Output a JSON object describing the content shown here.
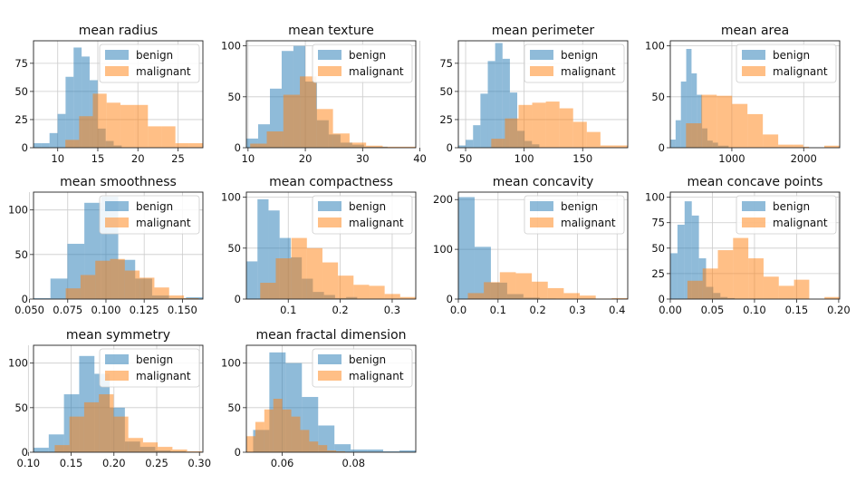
{
  "colors": {
    "benign": "#1f77b4",
    "malignant": "#ff7f0e"
  },
  "chart_data": [
    {
      "type": "histogram",
      "title": "mean radius",
      "xlim": [
        6.98,
        28.11
      ],
      "ylim": [
        0,
        95
      ],
      "grid": true,
      "legend": "top-right",
      "xticks": [
        "10",
        "15",
        "20",
        "25"
      ],
      "yticks": [
        "0",
        "25",
        "50",
        "75"
      ],
      "series": [
        {
          "name": "benign",
          "bins": [
            6.98,
            7.98,
            8.98,
            9.98,
            10.98,
            11.98,
            12.98,
            13.98,
            14.98,
            15.98,
            16.98,
            17.98
          ],
          "counts": [
            4,
            4,
            13,
            30,
            63,
            89,
            81,
            60,
            17,
            6,
            2
          ]
        },
        {
          "name": "malignant",
          "bins": [
            10.95,
            12.67,
            14.38,
            16.1,
            17.82,
            19.53,
            21.25,
            22.96,
            24.68,
            26.4,
            28.11
          ],
          "counts": [
            7,
            28,
            48,
            40,
            38,
            38,
            19,
            19,
            4,
            4
          ]
        }
      ]
    },
    {
      "type": "histogram",
      "title": "mean texture",
      "xlim": [
        9.71,
        39.28
      ],
      "ylim": [
        0,
        105
      ],
      "grid": true,
      "legend": "top-right",
      "xticks": [
        "10",
        "20",
        "30",
        "40"
      ],
      "yticks": [
        "0",
        "50",
        "100"
      ],
      "series": [
        {
          "name": "benign",
          "bins": [
            9.71,
            11.76,
            13.82,
            15.87,
            17.92,
            19.98,
            22.03,
            24.08,
            26.14,
            28.19,
            30.24,
            32.3,
            34.35
          ],
          "counts": [
            9,
            23,
            58,
            95,
            100,
            65,
            27,
            13,
            5,
            3,
            1,
            1
          ]
        },
        {
          "name": "malignant",
          "bins": [
            10.38,
            13.27,
            16.16,
            19.05,
            21.94,
            24.83,
            27.72,
            30.61,
            33.5,
            36.39,
            39.28
          ],
          "counts": [
            4,
            16,
            52,
            70,
            38,
            14,
            5,
            2,
            1,
            1
          ]
        }
      ]
    },
    {
      "type": "histogram",
      "title": "mean perimeter",
      "xlim": [
        43.79,
        188.5
      ],
      "ylim": [
        0,
        95
      ],
      "grid": true,
      "legend": "top-right",
      "xticks": [
        "50",
        "100",
        "150"
      ],
      "yticks": [
        "0",
        "25",
        "50",
        "75"
      ],
      "series": [
        {
          "name": "benign",
          "bins": [
            43.79,
            50.08,
            56.37,
            62.66,
            68.95,
            75.24,
            81.53,
            87.82,
            94.11,
            100.4,
            106.69,
            112.98
          ],
          "counts": [
            2,
            7,
            20,
            48,
            77,
            93,
            79,
            49,
            15,
            6,
            3
          ]
        },
        {
          "name": "malignant",
          "bins": [
            71.9,
            83.56,
            95.22,
            106.88,
            118.54,
            130.2,
            141.86,
            153.52,
            165.18,
            176.84,
            188.5
          ],
          "counts": [
            8,
            26,
            38,
            40,
            41,
            35,
            23,
            14,
            2,
            2
          ]
        }
      ]
    },
    {
      "type": "histogram",
      "title": "mean area",
      "xlim": [
        143.5,
        2501
      ],
      "ylim": [
        0,
        105
      ],
      "grid": true,
      "legend": "top-right",
      "xticks": [
        "1000",
        "2000"
      ],
      "yticks": [
        "0",
        "50",
        "100"
      ],
      "series": [
        {
          "name": "benign",
          "bins": [
            143.5,
            217.3,
            291.1,
            364.9,
            438.7,
            512.5,
            586.3,
            660.1,
            733.9,
            807.7,
            881.5,
            955.3
          ],
          "counts": [
            8,
            27,
            65,
            97,
            73,
            52,
            19,
            7,
            5,
            2,
            2
          ]
        },
        {
          "name": "malignant",
          "bins": [
            361.6,
            575.5,
            789.5,
            1003.4,
            1217.3,
            1431.3,
            1645.2,
            1859.1,
            1994,
            2073,
            2287,
            2501
          ],
          "counts": [
            24,
            52,
            51,
            43,
            33,
            13,
            3,
            3,
            1,
            0,
            2
          ]
        }
      ]
    },
    {
      "type": "histogram",
      "title": "mean smoothness",
      "xlim": [
        0.05263,
        0.1634
      ],
      "ylim": [
        0,
        120
      ],
      "grid": true,
      "legend": "top-right",
      "xticks": [
        "0.050",
        "0.075",
        "0.100",
        "0.125",
        "0.150"
      ],
      "yticks": [
        "0",
        "50",
        "100"
      ],
      "series": [
        {
          "name": "benign",
          "bins": [
            0.05263,
            0.06371,
            0.07479,
            0.08587,
            0.09695,
            0.10803,
            0.11911,
            0.13019,
            0.14127,
            0.15235,
            0.16343
          ],
          "counts": [
            1,
            23,
            62,
            108,
            115,
            44,
            23,
            4,
            1,
            2
          ]
        },
        {
          "name": "malignant",
          "bins": [
            0.07371,
            0.08337,
            0.09303,
            0.10269,
            0.11235,
            0.12201,
            0.13167,
            0.14133,
            0.15099,
            0.16065
          ],
          "counts": [
            12,
            27,
            43,
            45,
            32,
            24,
            13,
            4,
            1
          ]
        }
      ]
    },
    {
      "type": "histogram",
      "title": "mean compactness",
      "xlim": [
        0.01938,
        0.3454
      ],
      "ylim": [
        0,
        105
      ],
      "grid": true,
      "legend": "top-right",
      "xticks": [
        "0.1",
        "0.2",
        "0.3"
      ],
      "yticks": [
        "0",
        "50",
        "100"
      ],
      "series": [
        {
          "name": "benign",
          "bins": [
            0.01938,
            0.04071,
            0.06204,
            0.08337,
            0.1047,
            0.12603,
            0.14736,
            0.16869,
            0.19002,
            0.21135,
            0.23268
          ],
          "counts": [
            37,
            98,
            87,
            60,
            41,
            20,
            7,
            4,
            1,
            2
          ]
        },
        {
          "name": "malignant",
          "bins": [
            0.04605,
            0.07598,
            0.10591,
            0.13584,
            0.16577,
            0.1957,
            0.22563,
            0.25556,
            0.28549,
            0.31542,
            0.34535
          ],
          "counts": [
            16,
            40,
            60,
            50,
            36,
            23,
            14,
            13,
            5,
            2
          ]
        }
      ]
    },
    {
      "type": "histogram",
      "title": "mean concavity",
      "xlim": [
        0,
        0.4268
      ],
      "ylim": [
        0,
        215
      ],
      "grid": true,
      "legend": "top-right",
      "xticks": [
        "0.0",
        "0.1",
        "0.2",
        "0.3",
        "0.4"
      ],
      "yticks": [
        "0",
        "100",
        "200"
      ],
      "series": [
        {
          "name": "benign",
          "bins": [
            0,
            0.041,
            0.082,
            0.123,
            0.164,
            0.205,
            0.246,
            0.287,
            0.328,
            0.369,
            0.41
          ],
          "counts": [
            205,
            105,
            33,
            10,
            3,
            1,
            0,
            0,
            0,
            0
          ]
        },
        {
          "name": "malignant",
          "bins": [
            0.02398,
            0.06426,
            0.10454,
            0.14482,
            0.1851,
            0.22538,
            0.26566,
            0.30594,
            0.34622,
            0.3865,
            0.42678
          ],
          "counts": [
            12,
            34,
            54,
            52,
            35,
            22,
            12,
            7,
            1,
            2
          ]
        }
      ]
    },
    {
      "type": "histogram",
      "title": "mean concave points",
      "xlim": [
        0,
        0.2012
      ],
      "ylim": [
        0,
        105
      ],
      "grid": true,
      "legend": "top-right",
      "xticks": [
        "0.00",
        "0.05",
        "0.10",
        "0.15",
        "0.20"
      ],
      "yticks": [
        "0",
        "25",
        "50",
        "75",
        "100"
      ],
      "series": [
        {
          "name": "benign",
          "bins": [
            0,
            0.0085,
            0.017,
            0.0255,
            0.034,
            0.0425,
            0.051,
            0.0595,
            0.068,
            0.0765,
            0.085
          ],
          "counts": [
            45,
            73,
            96,
            82,
            40,
            12,
            6,
            2,
            1,
            0
          ]
        },
        {
          "name": "malignant",
          "bins": [
            0.02031,
            0.0384,
            0.05649,
            0.07458,
            0.09267,
            0.11076,
            0.12885,
            0.14694,
            0.16503,
            0.18312,
            0.20121
          ],
          "counts": [
            18,
            30,
            48,
            60,
            40,
            22,
            13,
            19,
            0,
            2
          ]
        }
      ]
    },
    {
      "type": "histogram",
      "title": "mean symmetry",
      "xlim": [
        0.106,
        0.304
      ],
      "ylim": [
        0,
        120
      ],
      "grid": true,
      "legend": "top-right",
      "xticks": [
        "0.10",
        "0.15",
        "0.20",
        "0.25",
        "0.30"
      ],
      "yticks": [
        "0",
        "50",
        "100"
      ],
      "series": [
        {
          "name": "benign",
          "bins": [
            0.106,
            0.1238,
            0.1416,
            0.1594,
            0.1772,
            0.195,
            0.2128,
            0.2306,
            0.2484,
            0.2662,
            0.284
          ],
          "counts": [
            5,
            20,
            65,
            108,
            88,
            50,
            12,
            6,
            2,
            1
          ]
        },
        {
          "name": "malignant",
          "bins": [
            0.1308,
            0.148,
            0.1652,
            0.1824,
            0.1996,
            0.2168,
            0.234,
            0.2512,
            0.2684,
            0.2856,
            0.3028
          ],
          "counts": [
            8,
            40,
            56,
            65,
            40,
            16,
            11,
            6,
            3,
            1
          ]
        }
      ]
    },
    {
      "type": "histogram",
      "title": "mean fractal dimension",
      "xlim": [
        0.04996,
        0.09744
      ],
      "ylim": [
        0,
        120
      ],
      "grid": true,
      "legend": "top-right",
      "xticks": [
        "0.06",
        "0.08"
      ],
      "yticks": [
        "0",
        "50",
        "100"
      ],
      "series": [
        {
          "name": "benign",
          "bins": [
            0.05185,
            0.0564,
            0.06096,
            0.06552,
            0.07008,
            0.07464,
            0.0792,
            0.08376,
            0.08832,
            0.09288,
            0.09744
          ],
          "counts": [
            25,
            112,
            100,
            62,
            30,
            9,
            3,
            3,
            1,
            2
          ]
        },
        {
          "name": "malignant",
          "bins": [
            0.04996,
            0.05248,
            0.05499,
            0.05751,
            0.06003,
            0.06254,
            0.06506,
            0.06758,
            0.07009,
            0.07261,
            0.07513,
            0.07765
          ],
          "counts": [
            18,
            34,
            48,
            60,
            48,
            40,
            25,
            12,
            8,
            2,
            1
          ]
        }
      ]
    }
  ]
}
